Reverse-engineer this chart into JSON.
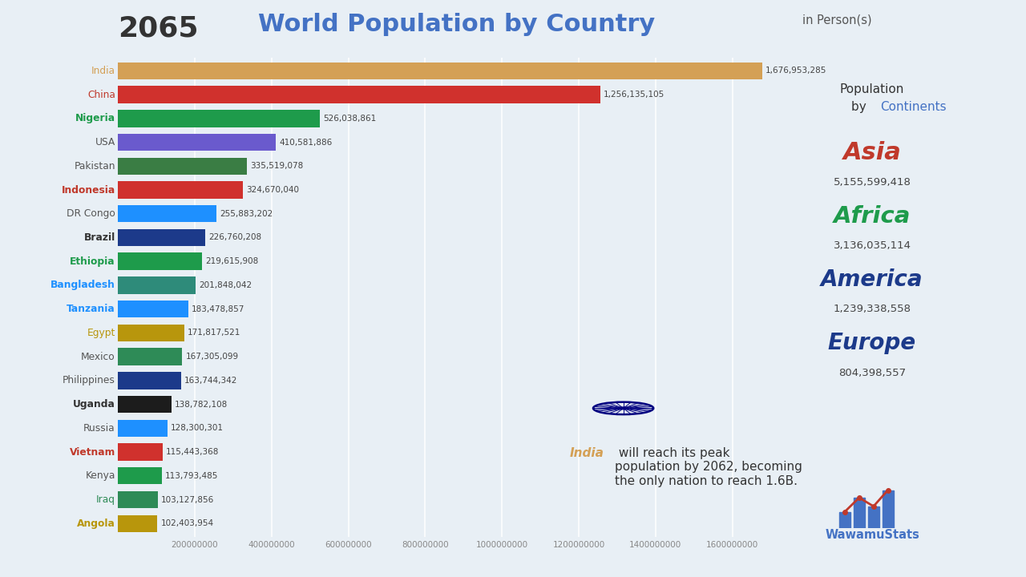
{
  "year": "2065",
  "title": "World Population by Country",
  "subtitle": "in Person(s)",
  "countries": [
    "India",
    "China",
    "Nigeria",
    "USA",
    "Pakistan",
    "Indonesia",
    "DR Congo",
    "Brazil",
    "Ethiopia",
    "Bangladesh",
    "Tanzania",
    "Egypt",
    "Mexico",
    "Philippines",
    "Uganda",
    "Russia",
    "Vietnam",
    "Kenya",
    "Iraq",
    "Angola"
  ],
  "values": [
    1676953285,
    1256135105,
    526038861,
    410581886,
    335519078,
    324670040,
    255883202,
    226760208,
    219615908,
    201848042,
    183478857,
    171817521,
    167305099,
    163744342,
    138782108,
    128300301,
    115443368,
    113793485,
    103127856,
    102403954
  ],
  "bar_colors": [
    "#D4A055",
    "#D0312D",
    "#1E9B4B",
    "#6A5ACD",
    "#3A7D44",
    "#D0312D",
    "#1E90FF",
    "#1C3A8A",
    "#1E9B4B",
    "#2E8B7A",
    "#1E90FF",
    "#B8960C",
    "#2E8B57",
    "#1C3A8A",
    "#1C1C1C",
    "#1E90FF",
    "#D0312D",
    "#1E9B4B",
    "#2E8B57",
    "#B8960C"
  ],
  "label_colors": [
    "#D4A055",
    "#C0392B",
    "#1E9B4B",
    "#555555",
    "#555555",
    "#C0392B",
    "#555555",
    "#333333",
    "#1E9B4B",
    "#1E90FF",
    "#1E90FF",
    "#B8960C",
    "#555555",
    "#555555",
    "#333333",
    "#555555",
    "#C0392B",
    "#555555",
    "#2E8B57",
    "#B8960C"
  ],
  "label_bold": [
    false,
    false,
    true,
    false,
    false,
    true,
    false,
    true,
    true,
    true,
    true,
    false,
    false,
    false,
    true,
    false,
    true,
    false,
    false,
    true
  ],
  "xlim": [
    0,
    1750000000
  ],
  "background_color": "#e8eff5",
  "continent_list": [
    "Asia",
    "Africa",
    "America",
    "Europe"
  ],
  "continent_colors": [
    "#C0392B",
    "#1E9B4B",
    "#1C3A8A",
    "#1C3A8A"
  ],
  "continent_values": [
    "5,155,599,418",
    "3,136,035,114",
    "1,239,338,558",
    "804,398,557"
  ],
  "annotation_india": "India",
  "annotation_rest": " will reach its peak\npopulation by 2062, becoming\nthe only nation to reach 1.6B.",
  "logo_text": "WawamuStats",
  "grid_values": [
    200000000,
    400000000,
    600000000,
    800000000,
    1000000000,
    1200000000,
    1400000000,
    1600000000
  ],
  "grid_labels": [
    "200000000",
    "400000000",
    "600000000",
    "800000000",
    "1000000000",
    "1200000000",
    "1400000000",
    "1600000000"
  ],
  "year_color": "#333333",
  "title_color": "#4472C4",
  "subtitle_color": "#555555",
  "pop_by_color": "#333333",
  "continents_word_color": "#4472C4"
}
